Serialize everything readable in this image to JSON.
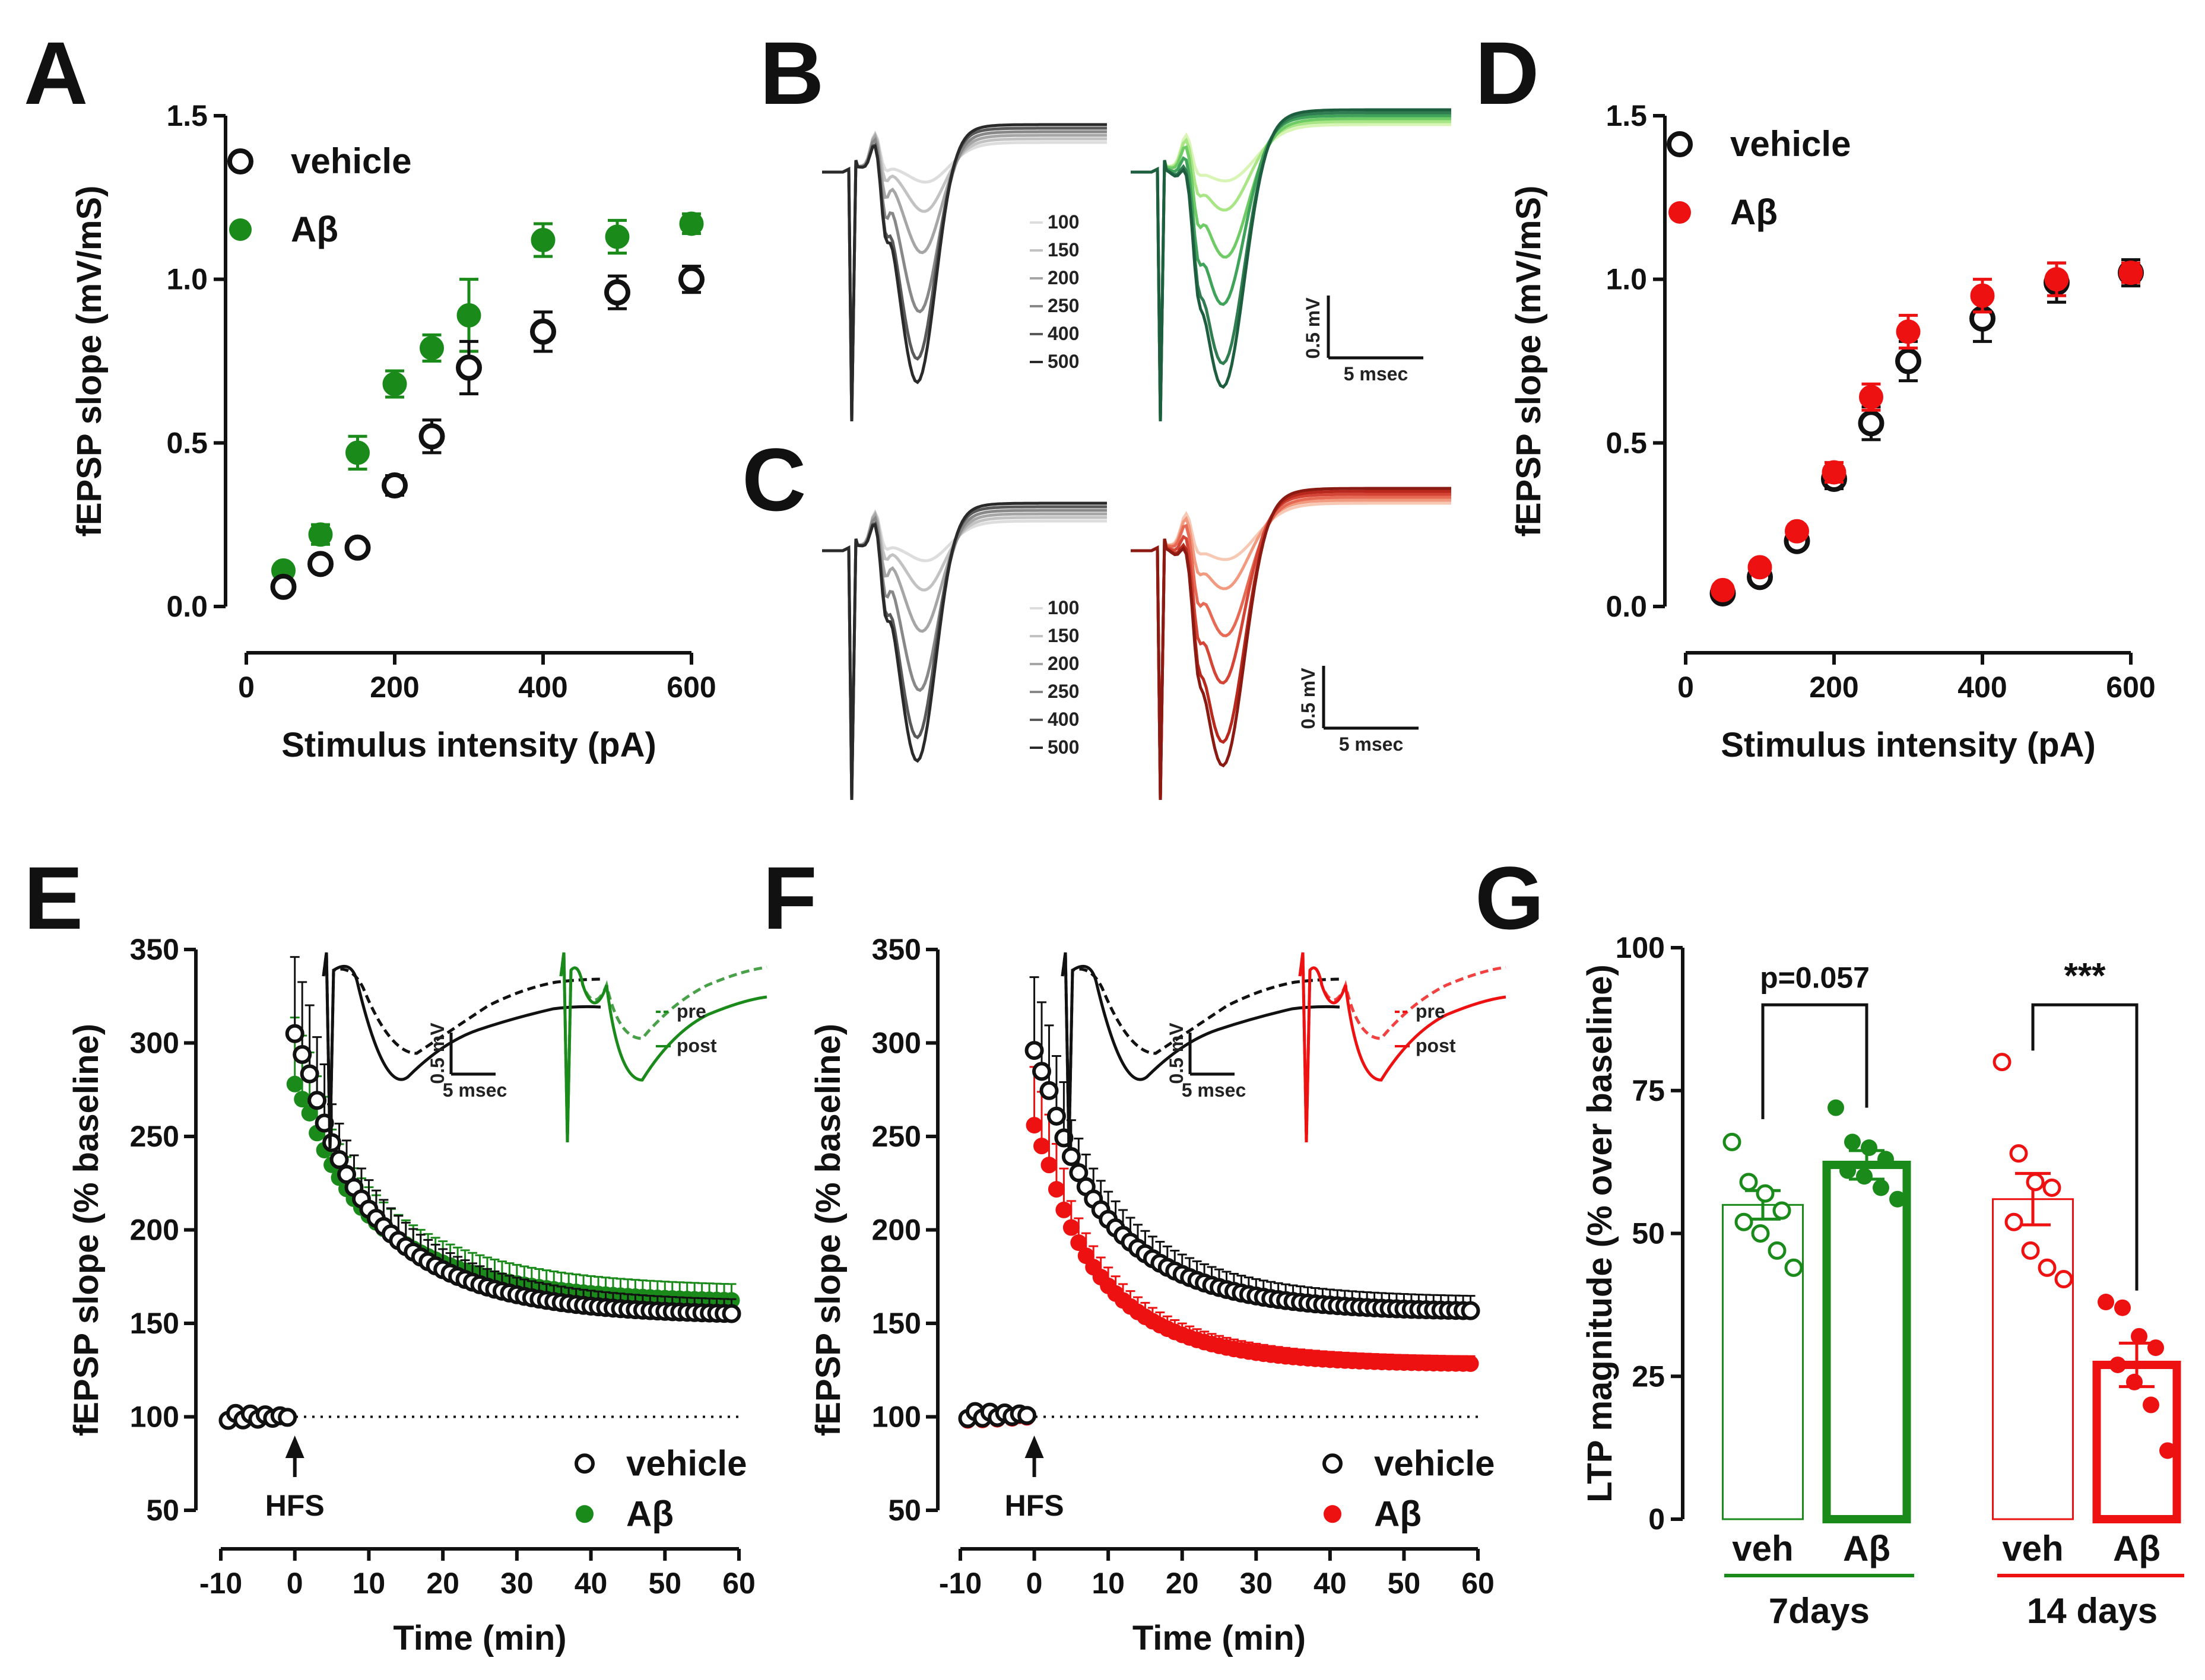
{
  "panel_labels": [
    "A",
    "B",
    "C",
    "D",
    "E",
    "F",
    "G"
  ],
  "colors": {
    "vehicle": "#111111",
    "abeta_7d": "#1a8a1a",
    "abeta_14d": "#ee1111",
    "gray_traces": [
      "#dddddd",
      "#c2c2c2",
      "#a6a6a6",
      "#888888",
      "#5a5a5a",
      "#2a2a2a"
    ],
    "green_traces": [
      "#d9f5b5",
      "#a8e685",
      "#6fcb66",
      "#3fa35a",
      "#2f7d50",
      "#1d5e3f"
    ],
    "red_traces": [
      "#f7c9b5",
      "#f29a80",
      "#e76a55",
      "#d44535",
      "#b8281c",
      "#8a1a12"
    ]
  },
  "chart_data": [
    {
      "panel": "A",
      "type": "scatter",
      "xlabel": "Stimulus intensity (pA)",
      "ylabel": "fEPSP slope (mV/mS)",
      "xlim": [
        0,
        600
      ],
      "ylim": [
        0,
        1.5
      ],
      "xticks": [
        "0",
        "200",
        "400",
        "600"
      ],
      "yticks": [
        "0.0",
        "0.5",
        "1.0",
        "1.5"
      ],
      "x": [
        50,
        100,
        150,
        200,
        250,
        300,
        400,
        500,
        600
      ],
      "series": [
        {
          "name": "vehicle",
          "values": [
            0.06,
            0.13,
            0.18,
            0.37,
            0.52,
            0.73,
            0.84,
            0.96,
            1.0
          ],
          "errors": [
            0.02,
            0.02,
            0.02,
            0.03,
            0.05,
            0.08,
            0.06,
            0.05,
            0.04
          ]
        },
        {
          "name": "Aβ",
          "values": [
            0.11,
            0.22,
            0.47,
            0.68,
            0.79,
            0.89,
            1.12,
            1.13,
            1.17
          ],
          "errors": [
            0.02,
            0.03,
            0.05,
            0.04,
            0.04,
            0.11,
            0.05,
            0.05,
            0.03
          ]
        }
      ]
    },
    {
      "panel": "B",
      "type": "line",
      "legend": [
        "100",
        "150",
        "200",
        "250",
        "400",
        "500"
      ],
      "scale_y": "0.5 mV",
      "scale_x": "5 msec"
    },
    {
      "panel": "C",
      "type": "line",
      "legend": [
        "100",
        "150",
        "200",
        "250",
        "400",
        "500"
      ],
      "scale_y": "0.5 mV",
      "scale_x": "5 msec"
    },
    {
      "panel": "D",
      "type": "scatter",
      "xlabel": "Stimulus intensity (pA)",
      "ylabel": "fEPSP slope (mV/mS)",
      "xlim": [
        0,
        600
      ],
      "ylim": [
        0,
        1.5
      ],
      "xticks": [
        "0",
        "200",
        "400",
        "600"
      ],
      "yticks": [
        "0.0",
        "0.5",
        "1.0",
        "1.5"
      ],
      "x": [
        50,
        100,
        150,
        200,
        250,
        300,
        400,
        500,
        600
      ],
      "series": [
        {
          "name": "vehicle",
          "values": [
            0.04,
            0.09,
            0.2,
            0.39,
            0.56,
            0.75,
            0.88,
            0.99,
            1.02
          ],
          "errors": [
            0.01,
            0.02,
            0.02,
            0.03,
            0.05,
            0.06,
            0.07,
            0.06,
            0.04
          ]
        },
        {
          "name": "Aβ",
          "values": [
            0.05,
            0.12,
            0.23,
            0.41,
            0.64,
            0.84,
            0.95,
            1.0,
            1.02
          ],
          "errors": [
            0.01,
            0.02,
            0.02,
            0.03,
            0.04,
            0.05,
            0.05,
            0.05,
            0.03
          ]
        }
      ]
    },
    {
      "panel": "E",
      "type": "scatter",
      "xlabel": "Time (min)",
      "ylabel": "fEPSP slope (% baseline)",
      "xlim": [
        -10,
        60
      ],
      "ylim": [
        50,
        350
      ],
      "xticks": [
        "-10",
        "0",
        "10",
        "20",
        "30",
        "40",
        "50",
        "60"
      ],
      "yticks": [
        "50",
        "100",
        "150",
        "200",
        "250",
        "300",
        "350"
      ],
      "annotation": "HFS",
      "inset_legend": [
        "pre",
        "post"
      ],
      "scale_y": "0.5 mV",
      "scale_x": "5 msec",
      "series": [
        {
          "name": "vehicle",
          "baseline": 100,
          "peak": 305,
          "end": 154,
          "tau": 13
        },
        {
          "name": "Aβ",
          "baseline": 100,
          "peak": 278,
          "end": 161,
          "tau": 14
        }
      ]
    },
    {
      "panel": "F",
      "type": "scatter",
      "xlabel": "Time (min)",
      "ylabel": "fEPSP slope (% baseline)",
      "xlim": [
        -10,
        60
      ],
      "ylim": [
        50,
        350
      ],
      "xticks": [
        "-10",
        "0",
        "10",
        "20",
        "30",
        "40",
        "50",
        "60"
      ],
      "yticks": [
        "50",
        "100",
        "150",
        "200",
        "250",
        "300",
        "350"
      ],
      "annotation": "HFS",
      "inset_legend": [
        "pre",
        "post"
      ],
      "scale_y": "0.5 mV",
      "scale_x": "5 msec",
      "series": [
        {
          "name": "vehicle",
          "baseline": 101,
          "peak": 296,
          "end": 156,
          "tau": 12
        },
        {
          "name": "Aβ",
          "baseline": 100,
          "peak": 256,
          "end": 128,
          "tau": 11
        }
      ]
    },
    {
      "panel": "G",
      "type": "bar",
      "ylabel": "LTP magnitude (% over baseline)",
      "ylim": [
        0,
        100
      ],
      "yticks": [
        "0",
        "25",
        "50",
        "75",
        "100"
      ],
      "categories": [
        "veh",
        "Aβ",
        "veh",
        "Aβ"
      ],
      "groups": [
        "7days",
        "14 days"
      ],
      "values": [
        55,
        62,
        56,
        27
      ],
      "errors": [
        2.5,
        2.5,
        4.5,
        3.8
      ],
      "points": [
        [
          66,
          59,
          57,
          54,
          52,
          50,
          47,
          44
        ],
        [
          72,
          66,
          65,
          63,
          61,
          60,
          58,
          56
        ],
        [
          80,
          64,
          59,
          58,
          52,
          47,
          44,
          42
        ],
        [
          38,
          37,
          32,
          30,
          27,
          24,
          20,
          12
        ]
      ],
      "comparisons": [
        "p=0.057",
        "***"
      ]
    }
  ],
  "legends": {
    "vehicle": "vehicle",
    "abeta": "Aβ"
  }
}
